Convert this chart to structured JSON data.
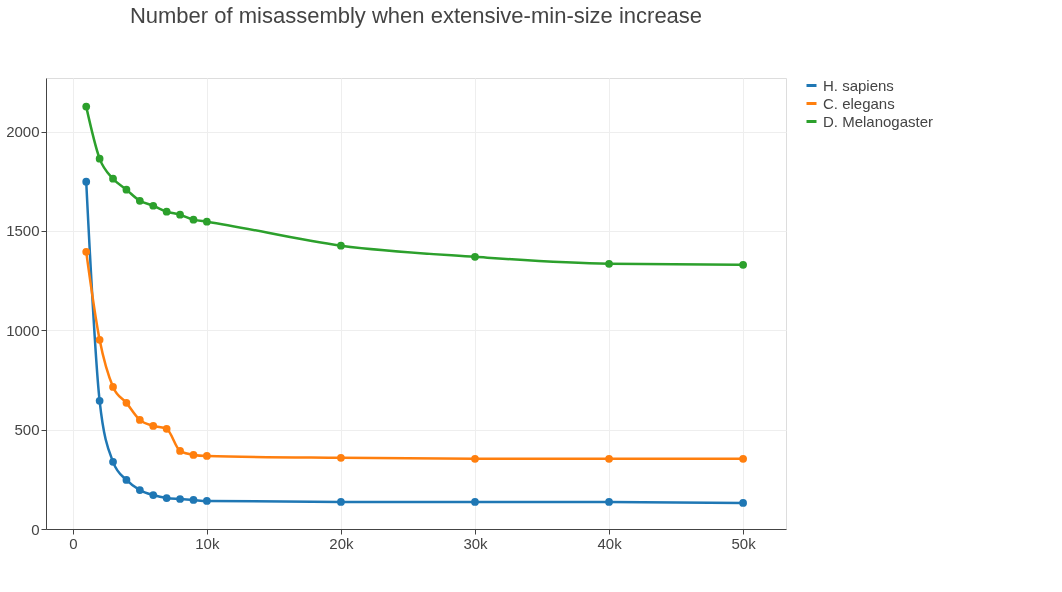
{
  "chart_data": {
    "type": "line",
    "title": "Number of misassembly when extensive-min-size increase",
    "x": [
      1000,
      2000,
      3000,
      4000,
      5000,
      6000,
      7000,
      8000,
      9000,
      10000,
      20000,
      30000,
      40000,
      50000
    ],
    "series": [
      {
        "name": "H. sapiens",
        "color": "#1f77b4",
        "values": [
          1748,
          645,
          338,
          247,
          196,
          171,
          156,
          151,
          146,
          141,
          136,
          136,
          136,
          131
        ]
      },
      {
        "name": "C. elegans",
        "color": "#ff7f0e",
        "values": [
          1395,
          952,
          715,
          635,
          549,
          519,
          504,
          393,
          373,
          368,
          358,
          353,
          353,
          353
        ]
      },
      {
        "name": "D. Melanogaster",
        "color": "#2ca02c",
        "values": [
          2126,
          1864,
          1763,
          1708,
          1652,
          1627,
          1597,
          1582,
          1557,
          1547,
          1426,
          1370,
          1335,
          1330
        ]
      }
    ],
    "xlim": [
      -2000,
      53200
    ],
    "ylim": [
      0,
      2270
    ],
    "xticks": [
      0,
      {
        "value": 10000,
        "label": "10k"
      },
      {
        "value": 20000,
        "label": "20k"
      },
      {
        "value": 30000,
        "label": "30k"
      },
      {
        "value": 40000,
        "label": "40k"
      },
      {
        "value": 50000,
        "label": "50k"
      }
    ],
    "yticks": [
      0,
      500,
      1000,
      1500,
      2000
    ],
    "grid": true,
    "legend": "top right",
    "marker": "circle",
    "line_style": "solid"
  }
}
